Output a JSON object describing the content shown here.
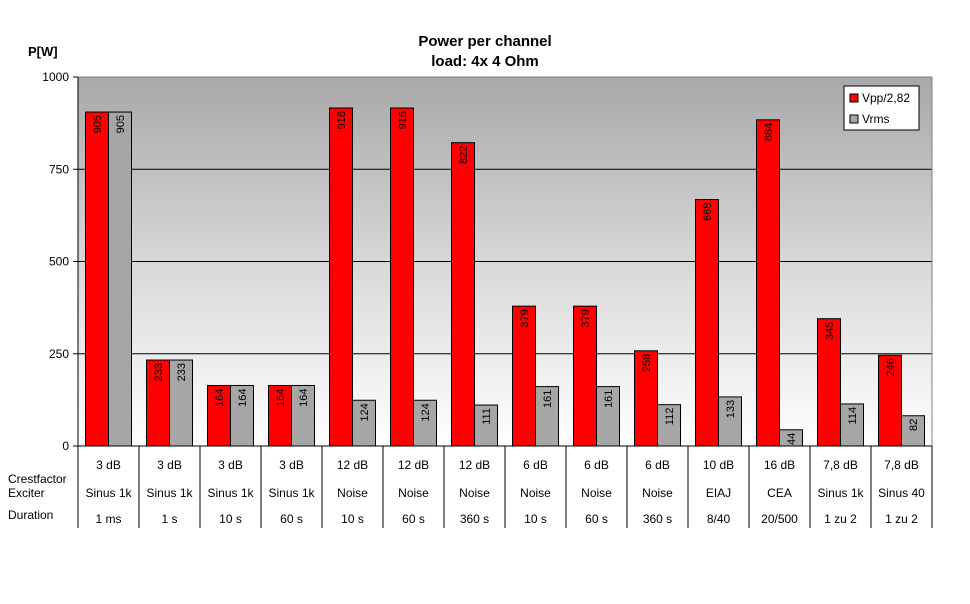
{
  "chart_data": {
    "type": "bar",
    "title": "Power per channel",
    "subtitle": "load:  4x 4 Ohm",
    "ylabel": "P[W]",
    "xlabel": "",
    "ylim": [
      0,
      1000
    ],
    "yticks": [
      0,
      250,
      500,
      750,
      1000
    ],
    "grid": true,
    "legend_position": "top-right",
    "categories": [
      "3 dB Sinus 1k 1 ms",
      "3 dB Sinus 1k 1 s",
      "3 dB Sinus 1k 10 s",
      "3 dB Sinus 1k 60 s",
      "12 dB Noise 10 s",
      "12 dB Noise 60 s",
      "12 dB Noise 360 s",
      "6 dB Noise 10 s",
      "6 dB Noise 60 s",
      "6 dB Noise 360 s",
      "10 dB EIAJ 8/40",
      "16 dB CEA 20/500",
      "7,8 dB Sinus 1k 1 zu 2",
      "7,8 dB Sinus 40 1 zu 2"
    ],
    "series": [
      {
        "name": "Vpp/2,82",
        "color": "#ff0000",
        "values": [
          905,
          233,
          164,
          164,
          916,
          916,
          822,
          379,
          379,
          258,
          668,
          884,
          345,
          246
        ]
      },
      {
        "name": "Vrms",
        "color": "#a6a6a6",
        "values": [
          905,
          233,
          164,
          164,
          124,
          124,
          111,
          161,
          161,
          112,
          133,
          44,
          114,
          82
        ]
      }
    ],
    "table_rows": [
      {
        "label": "Crestfactor",
        "cells": [
          "3 dB",
          "3 dB",
          "3 dB",
          "3 dB",
          "12 dB",
          "12 dB",
          "12 dB",
          "6 dB",
          "6 dB",
          "6 dB",
          "10 dB",
          "16 dB",
          "7,8 dB",
          "7,8 dB"
        ]
      },
      {
        "label": "Exciter",
        "cells": [
          "Sinus 1k",
          "Sinus 1k",
          "Sinus 1k",
          "Sinus 1k",
          "Noise",
          "Noise",
          "Noise",
          "Noise",
          "Noise",
          "Noise",
          "EIAJ",
          "CEA",
          "Sinus 1k",
          "Sinus 40"
        ]
      },
      {
        "label": "Duration",
        "cells": [
          "1 ms",
          "1 s",
          "10 s",
          "60 s",
          "10 s",
          "60 s",
          "360 s",
          "10 s",
          "60 s",
          "360 s",
          "8/40",
          "20/500",
          "1 zu 2",
          "1 zu 2"
        ]
      }
    ]
  }
}
